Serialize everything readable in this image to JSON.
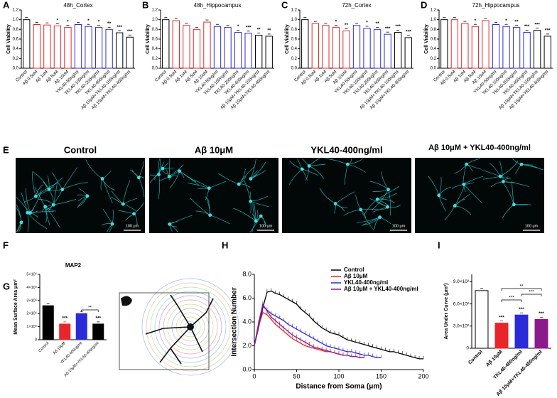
{
  "chart_data": [
    {
      "panel": "A",
      "type": "bar",
      "title": "48h_Cortex",
      "ylabel": "Cell Viability",
      "categories": [
        "Control",
        "Aβ 0.5uM",
        "Aβ 1uM",
        "Aβ 5uM",
        "Aβ 10uM",
        "YKL40-50ng/ml",
        "YKL40-100ng/ml",
        "YKL40-200ng/ml",
        "YKL40-400ng/ml",
        "Aβ 10μM+YKL40-100ng/ml",
        "Aβ 10μM+YKL40-400ng/ml"
      ],
      "values": [
        1.0,
        0.9,
        0.89,
        0.87,
        0.84,
        0.9,
        0.86,
        0.84,
        0.8,
        0.73,
        0.64
      ],
      "annotations": [
        null,
        null,
        null,
        "*",
        "*",
        null,
        "*",
        "*",
        "**",
        "***",
        "***"
      ],
      "colors": [
        "#000000",
        "#e8262a",
        "#e8262a",
        "#e8262a",
        "#e8262a",
        "#2b2bd8",
        "#2b2bd8",
        "#2b2bd8",
        "#2b2bd8",
        "#000000",
        "#000000"
      ],
      "ylim": [
        0,
        1.2
      ],
      "yticks": [
        {
          "value": 0,
          "label": "0.0"
        },
        0.2,
        0.4,
        0.6,
        0.8,
        {
          "value": 1,
          "label": "1.0"
        },
        1.2
      ]
    },
    {
      "panel": "B",
      "type": "bar",
      "title": "48h_Hippocampus",
      "ylabel": "Cell Viability",
      "categories": [
        "Control",
        "Aβ 0.5uM",
        "Aβ 1uM",
        "Aβ 5uM",
        "Aβ 10uM",
        "YKL40-50ng/ml",
        "YKL40-100ng/ml",
        "YKL40-200ng/ml",
        "YKL40-400ng/ml",
        "Aβ 10μM+YKL40-100ng/ml",
        "Aβ 10μM+YKL40-400ng/ml"
      ],
      "values": [
        1.0,
        0.98,
        0.88,
        0.8,
        0.95,
        0.86,
        0.84,
        0.74,
        0.72,
        0.68,
        0.66
      ],
      "annotations": [
        null,
        null,
        null,
        null,
        null,
        null,
        null,
        "*",
        "***",
        "**",
        "**"
      ],
      "colors": [
        "#000000",
        "#e8262a",
        "#e8262a",
        "#e8262a",
        "#e8262a",
        "#2b2bd8",
        "#2b2bd8",
        "#2b2bd8",
        "#2b2bd8",
        "#000000",
        "#000000"
      ],
      "ylim": [
        0,
        1.2
      ],
      "yticks": [
        {
          "value": 0,
          "label": "0.0"
        },
        0.2,
        0.4,
        0.6,
        0.8,
        {
          "value": 1,
          "label": "1.0"
        },
        1.2
      ]
    },
    {
      "panel": "C",
      "type": "bar",
      "title": "72h_Cortex",
      "ylabel": "Cell Viability",
      "categories": [
        "Control",
        "Aβ 0.5uM",
        "Aβ 1uM",
        "Aβ 5uM",
        "Aβ 10uM",
        "YKL40-50ng/ml",
        "YKL40-100ng/ml",
        "YKL40-200ng/ml",
        "YKL40-400ng/ml",
        "Aβ 10μM+YKL40-100ng/ml",
        "Aβ 10μM+YKL40-400ng/ml"
      ],
      "values": [
        1.0,
        0.92,
        0.88,
        0.84,
        0.77,
        0.88,
        0.82,
        0.8,
        0.7,
        0.74,
        0.63
      ],
      "annotations": [
        null,
        null,
        null,
        "*",
        "**",
        null,
        "*",
        "**",
        "***",
        "***",
        "***"
      ],
      "colors": [
        "#000000",
        "#e8262a",
        "#e8262a",
        "#e8262a",
        "#e8262a",
        "#2b2bd8",
        "#2b2bd8",
        "#2b2bd8",
        "#2b2bd8",
        "#000000",
        "#000000"
      ],
      "ylim": [
        0,
        1.2
      ],
      "yticks": [
        {
          "value": 0,
          "label": "0.0"
        },
        0.2,
        0.4,
        0.6,
        0.8,
        {
          "value": 1,
          "label": "1.0"
        },
        1.2
      ]
    },
    {
      "panel": "D",
      "type": "bar",
      "title": "72h_Hippocampus",
      "ylabel": "Cell Viability",
      "categories": [
        "Control",
        "Aβ 0.5uM",
        "Aβ 1uM",
        "Aβ 5uM",
        "Aβ 10uM",
        "YKL40-50ng/ml",
        "YKL40-100ng/ml",
        "YKL40-200ng/ml",
        "YKL40-400ng/ml",
        "Aβ 10μM+YKL40-100ng/ml",
        "Aβ 10μM+YKL40-400ng/ml"
      ],
      "values": [
        1.0,
        1.0,
        0.92,
        0.86,
        0.98,
        0.9,
        0.86,
        0.84,
        0.74,
        0.78,
        0.66
      ],
      "annotations": [
        null,
        null,
        null,
        "*",
        null,
        null,
        "*",
        "**",
        "***",
        "***",
        "***"
      ],
      "colors": [
        "#000000",
        "#e8262a",
        "#e8262a",
        "#e8262a",
        "#e8262a",
        "#2b2bd8",
        "#2b2bd8",
        "#2b2bd8",
        "#2b2bd8",
        "#000000",
        "#000000"
      ],
      "ylim": [
        0,
        1.2
      ],
      "yticks": [
        {
          "value": 0,
          "label": "0.0"
        },
        0.2,
        0.4,
        0.6,
        0.8,
        {
          "value": 1,
          "label": "1.0"
        },
        1.2
      ]
    },
    {
      "panel": "F",
      "type": "bar",
      "title": "MAP2",
      "ylabel": "Mean Surface Area μm²",
      "categories": [
        "Control",
        "Aβ 10μM",
        "YKL40-400ng/ml",
        "Aβ 10μM+YKL40-400ng/ml"
      ],
      "values": [
        260000,
        120000,
        200000,
        120000
      ],
      "annotations": [
        null,
        "***",
        null,
        "***"
      ],
      "brackets": [
        "**"
      ],
      "colors": [
        "#000000",
        "#e8262a",
        "#2b2bd8",
        "#000000"
      ],
      "ylim": [
        0,
        500000
      ],
      "yticks": [
        0,
        {
          "value": 100000,
          "label": "1×10⁵"
        },
        {
          "value": 200000,
          "label": "2×10⁵"
        },
        {
          "value": 300000,
          "label": "3×10⁵"
        },
        {
          "value": 400000,
          "label": "4×10⁵"
        },
        {
          "value": 500000,
          "label": "5×10⁵"
        }
      ]
    },
    {
      "panel": "H",
      "type": "line",
      "xlabel": "Distance from Soma (μm)",
      "ylabel": "Intersection Number",
      "x": [
        0,
        5,
        10,
        15,
        20,
        25,
        30,
        35,
        40,
        45,
        50,
        55,
        60,
        65,
        70,
        75,
        80,
        85,
        90,
        95,
        100,
        105,
        110,
        115,
        120,
        125,
        130,
        135,
        140,
        145,
        150,
        155,
        160,
        165,
        170,
        175,
        180,
        185,
        190,
        195,
        200
      ],
      "series": [
        {
          "name": "Control",
          "color": "#000000",
          "values": [
            2.0,
            3.5,
            5.2,
            6.5,
            6.6,
            6.4,
            6.3,
            6.1,
            5.9,
            5.7,
            5.5,
            5.1,
            4.8,
            4.5,
            4.1,
            3.8,
            3.5,
            3.3,
            3.1,
            3.0,
            2.9,
            2.7,
            2.5,
            2.4,
            2.3,
            2.2,
            2.1,
            2.0,
            1.9,
            1.8,
            1.7,
            1.6,
            1.5,
            1.5,
            1.4,
            1.3,
            1.2,
            1.1,
            1.0,
            0.9,
            0.9
          ]
        },
        {
          "name": "Aβ 10μM",
          "color": "#e8262a",
          "values": [
            2.0,
            3.6,
            4.8,
            4.6,
            4.2,
            3.8,
            3.5,
            3.2,
            2.9,
            2.6,
            2.4,
            2.2,
            2.0,
            1.9,
            1.8,
            1.7,
            1.6,
            1.5,
            1.5,
            1.4,
            1.3,
            1.2,
            1.2,
            1.1,
            1.1,
            1.0,
            1.0,
            null,
            null,
            null,
            null,
            null,
            null,
            null,
            null,
            null,
            null,
            null,
            null,
            null,
            null
          ]
        },
        {
          "name": "YKL40-400ng/ml",
          "color": "#2b2bd8",
          "values": [
            2.0,
            3.8,
            5.3,
            5.0,
            4.7,
            4.5,
            4.3,
            4.1,
            3.8,
            3.6,
            3.4,
            3.2,
            3.0,
            2.8,
            2.6,
            2.4,
            2.2,
            2.0,
            1.9,
            1.8,
            1.7,
            1.6,
            1.5,
            1.5,
            1.4,
            1.3,
            1.2,
            1.2,
            1.1,
            1.0,
            1.0,
            null,
            null,
            null,
            null,
            null,
            null,
            null,
            null,
            null,
            null
          ]
        },
        {
          "name": "Aβ 10μM + YKL40-400ng/ml",
          "color": "#8b1a8b",
          "values": [
            2.0,
            3.9,
            5.5,
            4.9,
            4.4,
            4.1,
            3.8,
            3.5,
            3.2,
            2.9,
            2.7,
            2.5,
            2.3,
            2.1,
            1.9,
            1.8,
            1.7,
            1.6,
            1.5,
            1.4,
            1.3,
            1.2,
            1.2,
            1.1,
            1.1,
            1.0,
            1.0,
            null,
            null,
            null,
            null,
            null,
            null,
            null,
            null,
            null,
            null,
            null,
            null,
            null,
            null
          ]
        }
      ],
      "xlim": [
        0,
        200
      ],
      "xticks": [
        0,
        50,
        100,
        150,
        200
      ],
      "ylim": [
        0,
        8
      ],
      "yticks": [
        {
          "value": 0,
          "label": "0.0"
        },
        {
          "value": 2,
          "label": "2.0"
        },
        {
          "value": 4,
          "label": "4.0"
        },
        {
          "value": 6,
          "label": "6.0"
        },
        {
          "value": 8,
          "label": "8.0"
        }
      ],
      "legend": "top-right"
    },
    {
      "panel": "I",
      "type": "bar",
      "ylabel": "Area Under Curve (μm²)",
      "categories": [
        "Control",
        "Aβ 10μM",
        "YKL40-400ng/ml",
        "Aβ 10μM+YKL40-400ng/ml"
      ],
      "values": [
        780,
        340,
        450,
        390
      ],
      "annotations": [
        null,
        "***",
        "***",
        "***"
      ],
      "brackets": [
        "**",
        "***",
        "***"
      ],
      "colors": [
        "#ffffff",
        "#e8262a",
        "#2b2bd8",
        "#8b1a8b"
      ],
      "ylim": [
        0,
        1000
      ],
      "yticks": [
        0,
        {
          "value": 300,
          "label": "3.0×10²"
        },
        {
          "value": 600,
          "label": "6.0×10²"
        },
        {
          "value": 900,
          "label": "9.0×10²"
        }
      ]
    }
  ],
  "images": {
    "panel": "E",
    "titles": [
      "Control",
      "Aβ 10μM",
      "YKL40-400ng/ml",
      "Aβ 10μM + YKL40-400ng/ml"
    ],
    "scale_bar": "100 μm"
  },
  "diagram": {
    "panel": "G"
  }
}
